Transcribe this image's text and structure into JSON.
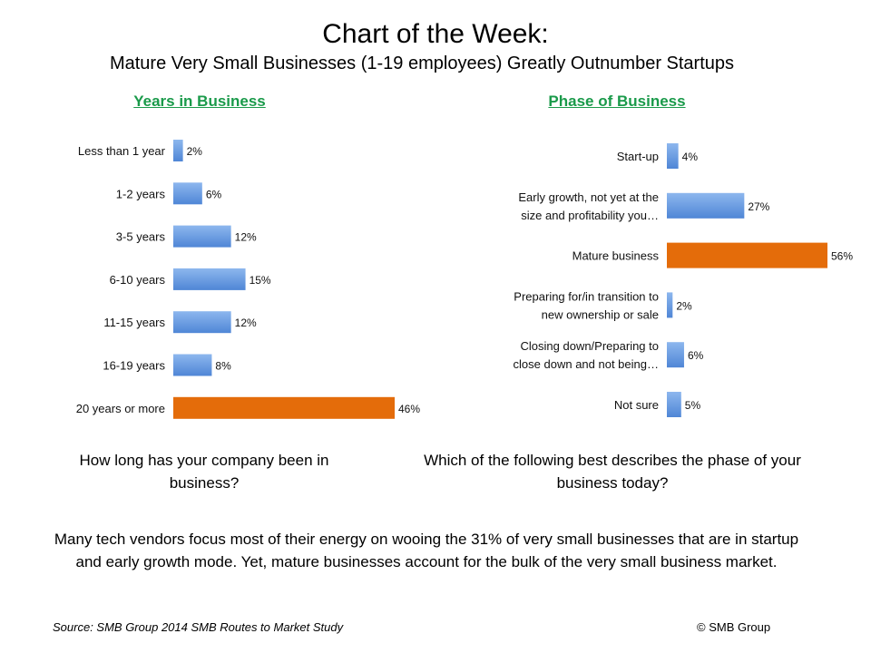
{
  "title": "Chart of the Week:",
  "subtitle": "Mature Very Small Businesses (1-19 employees) Greatly Outnumber Startups",
  "colors": {
    "bar_blue": "#6a9ee0",
    "bar_orange": "#e46c0a",
    "panel_title_green": "#1a9a4a"
  },
  "chart_data": [
    {
      "type": "bar",
      "orientation": "horizontal",
      "title": "Years in Business",
      "categories": [
        "Less than 1 year",
        "1-2 years",
        "3-5 years",
        "6-10 years",
        "11-15 years",
        "16-19 years",
        "20 years or more"
      ],
      "values": [
        2,
        6,
        12,
        15,
        12,
        8,
        46
      ],
      "value_labels": [
        "2%",
        "6%",
        "12%",
        "15%",
        "12%",
        "8%",
        "46%"
      ],
      "highlight_index": 6,
      "xlim": [
        0,
        46
      ],
      "caption": "How long has your company been in business?"
    },
    {
      "type": "bar",
      "orientation": "horizontal",
      "title": "Phase of Business",
      "categories": [
        [
          "Start-up"
        ],
        [
          "Early growth, not yet at the",
          "size and profitability you…"
        ],
        [
          "Mature business"
        ],
        [
          "Preparing for/in transition to",
          "new ownership or sale"
        ],
        [
          "Closing down/Preparing to",
          "close down and not being…"
        ],
        [
          "Not sure"
        ]
      ],
      "values": [
        4,
        27,
        56,
        2,
        6,
        5
      ],
      "value_labels": [
        "4%",
        "27%",
        "56%",
        "2%",
        "6%",
        "5%"
      ],
      "highlight_index": 2,
      "xlim": [
        0,
        56
      ],
      "caption": "Which of the following best describes the phase of your business today?"
    }
  ],
  "footer_note": "Many tech vendors focus most of their energy on wooing the 31% of very small businesses that are in startup and early growth mode. Yet, mature businesses account for the bulk of the very small business market.",
  "source": "Source: SMB Group 2014 SMB Routes to Market Study",
  "copyright": "© SMB Group"
}
